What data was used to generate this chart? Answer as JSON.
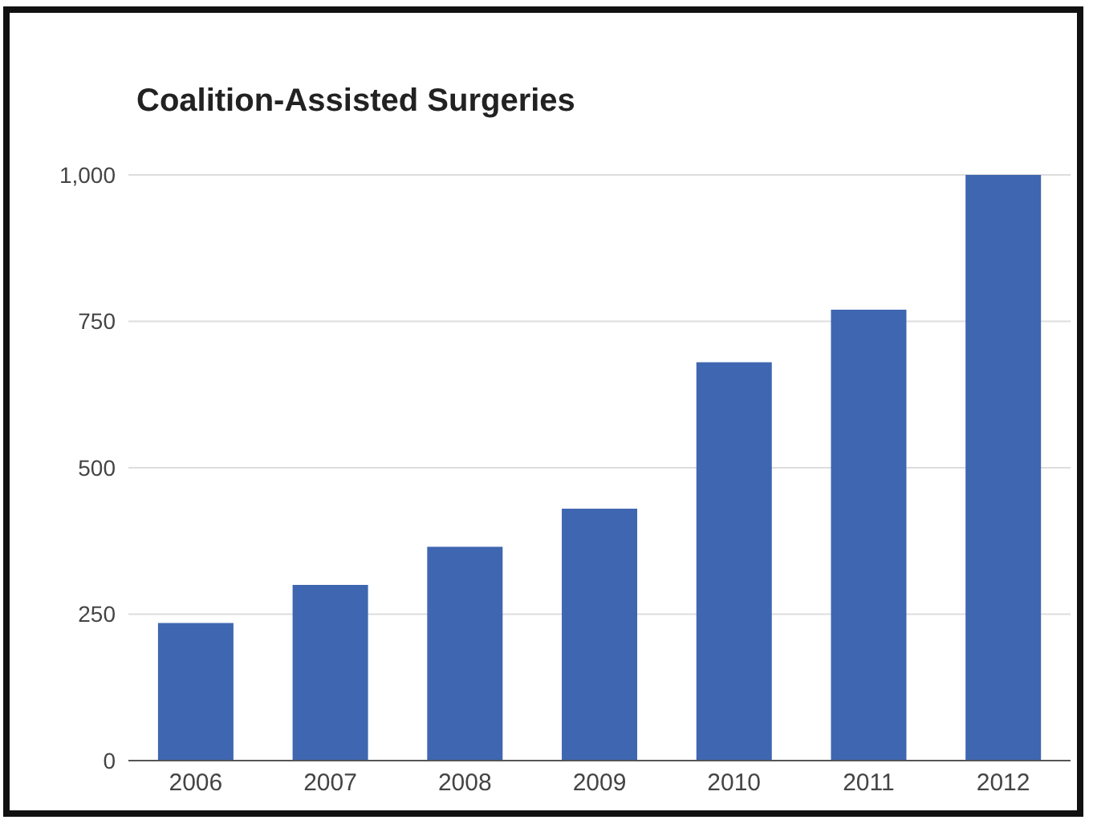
{
  "chart_data": {
    "type": "bar",
    "title": "Coalition-Assisted Surgeries",
    "categories": [
      "2006",
      "2007",
      "2008",
      "2009",
      "2010",
      "2011",
      "2012"
    ],
    "values": [
      235,
      300,
      365,
      430,
      680,
      770,
      1000
    ],
    "color": "#3f66b0",
    "ylim": [
      0,
      1000
    ],
    "yticks": [
      0,
      250,
      500,
      750,
      {
        "value": 1000,
        "label": "1,000"
      }
    ],
    "grid": "y"
  }
}
